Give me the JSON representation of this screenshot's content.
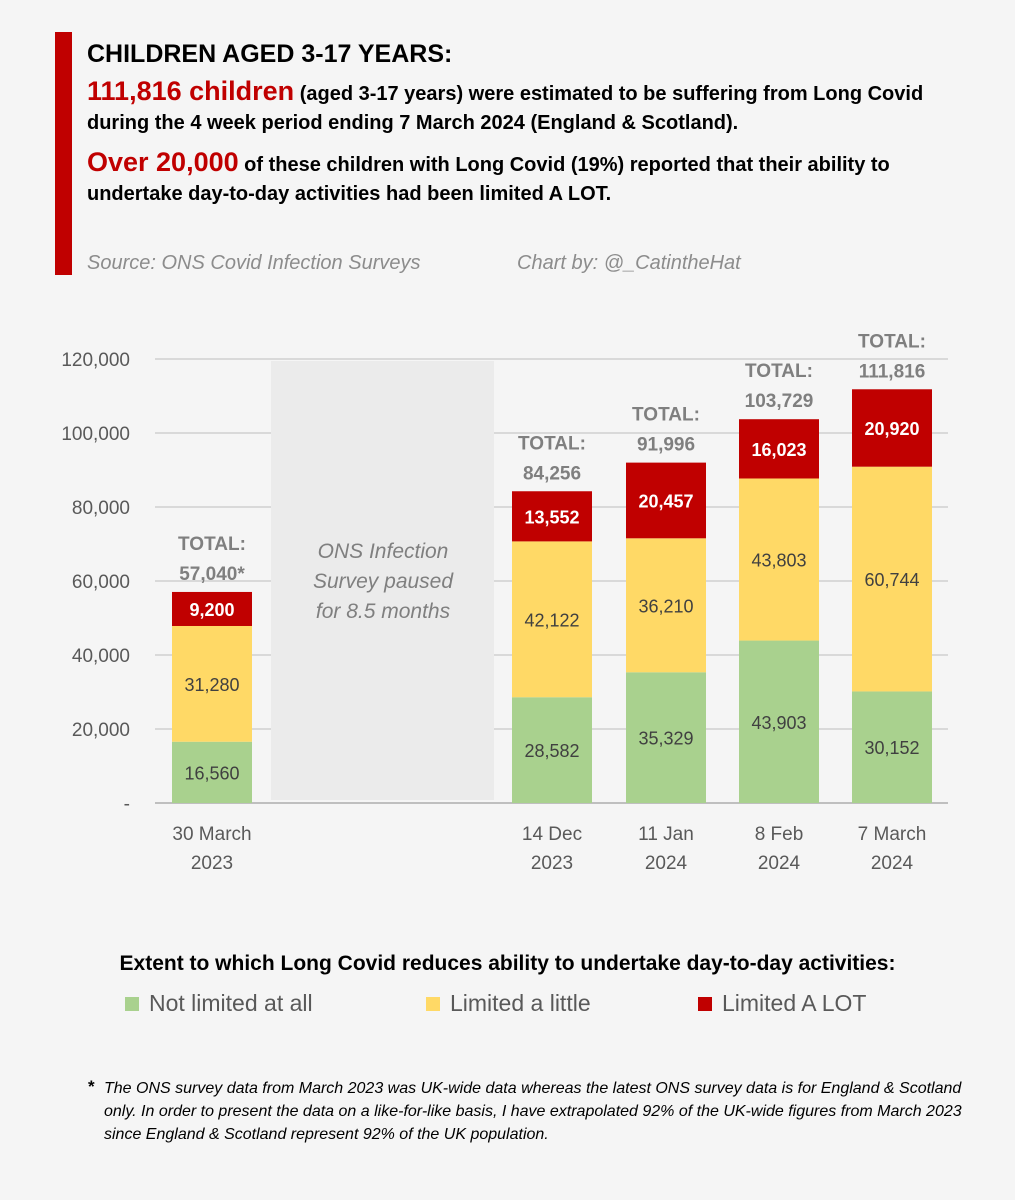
{
  "header": {
    "title": "CHILDREN AGED 3-17 YEARS:",
    "line1_highlight": "111,816 children",
    "line1_rest": " (aged 3-17 years) were estimated to be suffering from Long Covid during the 4 week period ending 7 March 2024 (England & Scotland).",
    "line2_highlight": "Over 20,000",
    "line2_rest": " of these children with Long Covid  (19%) reported that their ability to undertake day-to-day activities had been limited A LOT.",
    "source": "Source: ONS Covid Infection Surveys",
    "credit": "Chart by: @_CatintheHat"
  },
  "chart_data": {
    "type": "bar",
    "stacked": true,
    "categories": [
      [
        "30 March",
        "2023"
      ],
      [
        "14 Dec",
        "2023"
      ],
      [
        "11 Jan",
        "2024"
      ],
      [
        "8 Feb",
        "2024"
      ],
      [
        "7 March",
        "2024"
      ]
    ],
    "series": [
      {
        "name": "Not limited at all",
        "color": "#a9d18e",
        "values": [
          16560,
          28582,
          35329,
          43903,
          30152
        ]
      },
      {
        "name": "Limited a little",
        "color": "#ffd966",
        "values": [
          31280,
          42122,
          36210,
          43803,
          60744
        ]
      },
      {
        "name": "Limited A LOT",
        "color": "#c00000",
        "values": [
          9200,
          13552,
          20457,
          16023,
          20920
        ]
      }
    ],
    "totals_label": "TOTAL:",
    "totals": [
      "57,040*",
      "84,256",
      "91,996",
      "103,729",
      "111,816"
    ],
    "ylim": [
      0,
      120000
    ],
    "yticks": [
      "-",
      "20,000",
      "40,000",
      "60,000",
      "80,000",
      "100,000",
      "120,000"
    ],
    "grid": true,
    "annotation": [
      "ONS Infection",
      "Survey paused",
      "for 8.5 months"
    ],
    "legend_title": "Extent to which Long Covid reduces ability to undertake day-to-day activities:",
    "legend_placement": "bottom"
  },
  "footnote": {
    "marker": "*",
    "text": "The ONS survey data from March 2023 was UK-wide data whereas the latest ONS survey data is for England & Scotland only. In order to present the data on a like-for-like basis, I have extrapolated 92% of the UK-wide figures from March 2023 since England & Scotland represent 92% of the UK population."
  }
}
